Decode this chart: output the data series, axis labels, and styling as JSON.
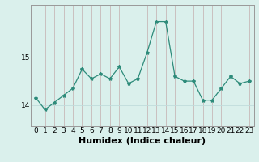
{
  "x": [
    0,
    1,
    2,
    3,
    4,
    5,
    6,
    7,
    8,
    9,
    10,
    11,
    12,
    13,
    14,
    15,
    16,
    17,
    18,
    19,
    20,
    21,
    22,
    23
  ],
  "y": [
    14.15,
    13.9,
    14.05,
    14.2,
    14.35,
    14.75,
    14.55,
    14.65,
    14.55,
    14.8,
    14.45,
    14.55,
    15.1,
    15.75,
    15.75,
    14.6,
    14.5,
    14.5,
    14.1,
    14.1,
    14.35,
    14.6,
    14.45,
    14.5
  ],
  "line_color": "#2d8b7a",
  "marker": "*",
  "marker_size": 3,
  "bg_color": "#daf0ec",
  "grid_color_v": "#c8b8b8",
  "grid_color_h": "#c0dcdc",
  "xlabel": "Humidex (Indice chaleur)",
  "xlabel_fontsize": 8,
  "tick_fontsize": 6.5,
  "yticks": [
    14,
    15
  ],
  "ylim": [
    13.55,
    16.1
  ],
  "xlim": [
    -0.5,
    23.5
  ],
  "xtick_labels": [
    "0",
    "1",
    "2",
    "3",
    "4",
    "5",
    "6",
    "7",
    "8",
    "9",
    "10",
    "11",
    "12",
    "13",
    "14",
    "15",
    "16",
    "17",
    "18",
    "19",
    "20",
    "21",
    "22",
    "23"
  ],
  "spine_color": "#999999"
}
